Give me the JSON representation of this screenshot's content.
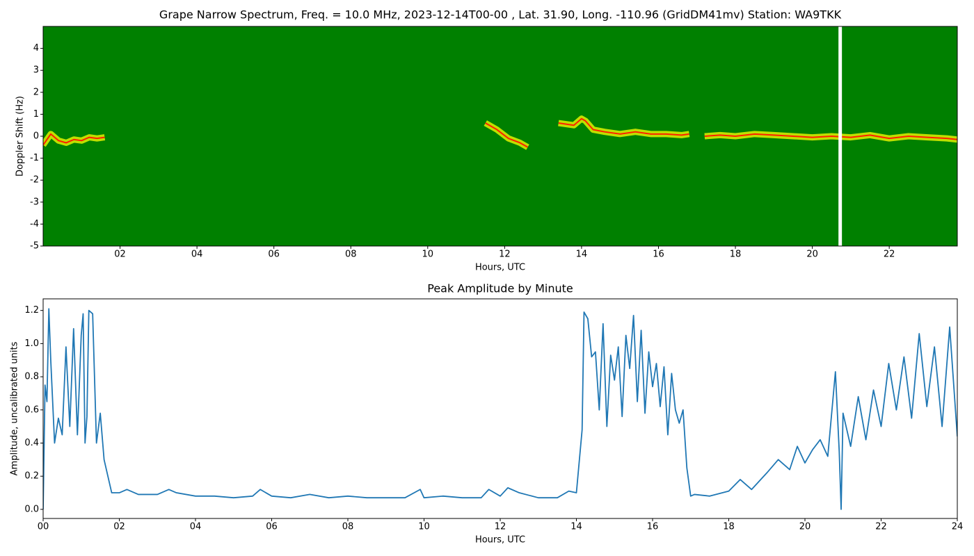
{
  "chart_data": [
    {
      "type": "spectrogram",
      "title": "Grape Narrow Spectrum, Freq. = 10.0 MHz, 2023-12-14T00-00 , Lat.  31.90, Long. -110.96 (GridDM41mv) Station: WA9TKK",
      "xlabel": "Hours, UTC",
      "ylabel": "Doppler Shift (Hz)",
      "xlim": [
        0,
        23.77
      ],
      "ylim": [
        -5,
        5
      ],
      "xticks": [
        {
          "value": 2,
          "label": "02"
        },
        {
          "value": 4,
          "label": "04"
        },
        {
          "value": 6,
          "label": "06"
        },
        {
          "value": 8,
          "label": "08"
        },
        10,
        12,
        14,
        16,
        18,
        20,
        22
      ],
      "yticks": [
        -5,
        -4,
        -3,
        -2,
        -1,
        0,
        1,
        2,
        3,
        4
      ],
      "background": "#008000",
      "halo_color": "#ffff00",
      "color": "#ff2000",
      "missing_x": [
        20.68,
        20.77
      ],
      "x": [
        0.0,
        0.2,
        0.4,
        0.6,
        0.8,
        1.0,
        1.2,
        1.4,
        1.6,
        1.7,
        11.5,
        11.8,
        12.1,
        12.4,
        12.6,
        12.7,
        13.4,
        13.8,
        14.0,
        14.1,
        14.3,
        14.6,
        15.0,
        15.4,
        15.8,
        16.2,
        16.6,
        16.8,
        16.9,
        17.2,
        17.6,
        18.0,
        18.5,
        19.0,
        19.5,
        20.0,
        20.5,
        21.0,
        21.5,
        22.0,
        22.5,
        23.0,
        23.5,
        23.77
      ],
      "values": [
        -0.4,
        0.1,
        -0.2,
        -0.3,
        -0.15,
        -0.2,
        -0.05,
        -0.1,
        -0.05,
        null,
        0.6,
        0.3,
        -0.1,
        -0.3,
        -0.5,
        null,
        0.6,
        0.5,
        0.8,
        0.7,
        0.3,
        0.2,
        0.1,
        0.2,
        0.1,
        0.1,
        0.05,
        0.1,
        null,
        0.0,
        0.05,
        0.0,
        0.1,
        0.05,
        0.0,
        -0.05,
        0.0,
        -0.05,
        0.05,
        -0.1,
        0.0,
        -0.05,
        -0.1,
        -0.15
      ]
    },
    {
      "type": "line",
      "title": "Peak Amplitude by Minute",
      "xlabel": "Hours, UTC",
      "ylabel": "Amplitude, uncalibrated units",
      "xlim": [
        0,
        24
      ],
      "ylim": [
        -0.055,
        1.27
      ],
      "xticks": [
        {
          "value": 0,
          "label": "00"
        },
        {
          "value": 2,
          "label": "02"
        },
        {
          "value": 4,
          "label": "04"
        },
        {
          "value": 6,
          "label": "06"
        },
        {
          "value": 8,
          "label": "08"
        },
        10,
        12,
        14,
        16,
        18,
        20,
        22,
        24
      ],
      "yticks": [
        {
          "value": 0,
          "label": "0.0"
        },
        {
          "value": 0.2,
          "label": "0.2"
        },
        {
          "value": 0.4,
          "label": "0.4"
        },
        {
          "value": 0.6,
          "label": "0.6"
        },
        {
          "value": 0.8,
          "label": "0.8"
        },
        {
          "value": 1,
          "label": "1.0"
        },
        {
          "value": 1.2,
          "label": "1.2"
        }
      ],
      "color": "#1f77b4",
      "x": [
        0,
        0.05,
        0.1,
        0.15,
        0.2,
        0.3,
        0.4,
        0.5,
        0.6,
        0.7,
        0.8,
        0.9,
        1.0,
        1.05,
        1.1,
        1.15,
        1.2,
        1.3,
        1.4,
        1.5,
        1.6,
        1.7,
        1.8,
        2.0,
        2.2,
        2.5,
        3.0,
        3.3,
        3.5,
        4.0,
        4.5,
        5.0,
        5.5,
        5.7,
        6.0,
        6.5,
        7.0,
        7.5,
        8.0,
        8.5,
        9.0,
        9.5,
        9.9,
        10.0,
        10.5,
        11.0,
        11.5,
        11.7,
        12.0,
        12.2,
        12.5,
        13.0,
        13.5,
        13.8,
        14.0,
        14.15,
        14.2,
        14.3,
        14.4,
        14.5,
        14.6,
        14.7,
        14.8,
        14.9,
        15.0,
        15.1,
        15.2,
        15.3,
        15.4,
        15.5,
        15.6,
        15.7,
        15.8,
        15.9,
        16.0,
        16.1,
        16.2,
        16.3,
        16.4,
        16.5,
        16.6,
        16.7,
        16.8,
        16.9,
        17.0,
        17.1,
        17.5,
        18.0,
        18.3,
        18.6,
        19.0,
        19.3,
        19.6,
        19.8,
        20.0,
        20.2,
        20.4,
        20.6,
        20.8,
        20.9,
        20.95,
        21.0,
        21.2,
        21.4,
        21.6,
        21.8,
        22.0,
        22.2,
        22.4,
        22.6,
        22.8,
        23.0,
        23.2,
        23.4,
        23.6,
        23.8,
        24.0
      ],
      "values": [
        0.0,
        0.75,
        0.65,
        1.21,
        0.9,
        0.4,
        0.55,
        0.45,
        0.98,
        0.5,
        1.09,
        0.45,
        1.05,
        1.18,
        0.4,
        0.56,
        1.2,
        1.18,
        0.4,
        0.58,
        0.3,
        0.2,
        0.1,
        0.1,
        0.12,
        0.09,
        0.09,
        0.12,
        0.1,
        0.08,
        0.08,
        0.07,
        0.08,
        0.12,
        0.08,
        0.07,
        0.09,
        0.07,
        0.08,
        0.07,
        0.07,
        0.07,
        0.12,
        0.07,
        0.08,
        0.07,
        0.07,
        0.12,
        0.08,
        0.13,
        0.1,
        0.07,
        0.07,
        0.11,
        0.1,
        0.48,
        1.19,
        1.15,
        0.92,
        0.95,
        0.6,
        1.12,
        0.5,
        0.93,
        0.78,
        0.98,
        0.56,
        1.05,
        0.85,
        1.17,
        0.65,
        1.08,
        0.58,
        0.95,
        0.74,
        0.88,
        0.62,
        0.86,
        0.45,
        0.82,
        0.6,
        0.52,
        0.6,
        0.25,
        0.08,
        0.09,
        0.08,
        0.11,
        0.18,
        0.12,
        0.22,
        0.3,
        0.24,
        0.38,
        0.28,
        0.36,
        0.42,
        0.32,
        0.83,
        0.35,
        0.0,
        0.58,
        0.38,
        0.68,
        0.42,
        0.72,
        0.5,
        0.88,
        0.6,
        0.92,
        0.55,
        1.06,
        0.62,
        0.98,
        0.5,
        1.1,
        0.44
      ]
    }
  ]
}
